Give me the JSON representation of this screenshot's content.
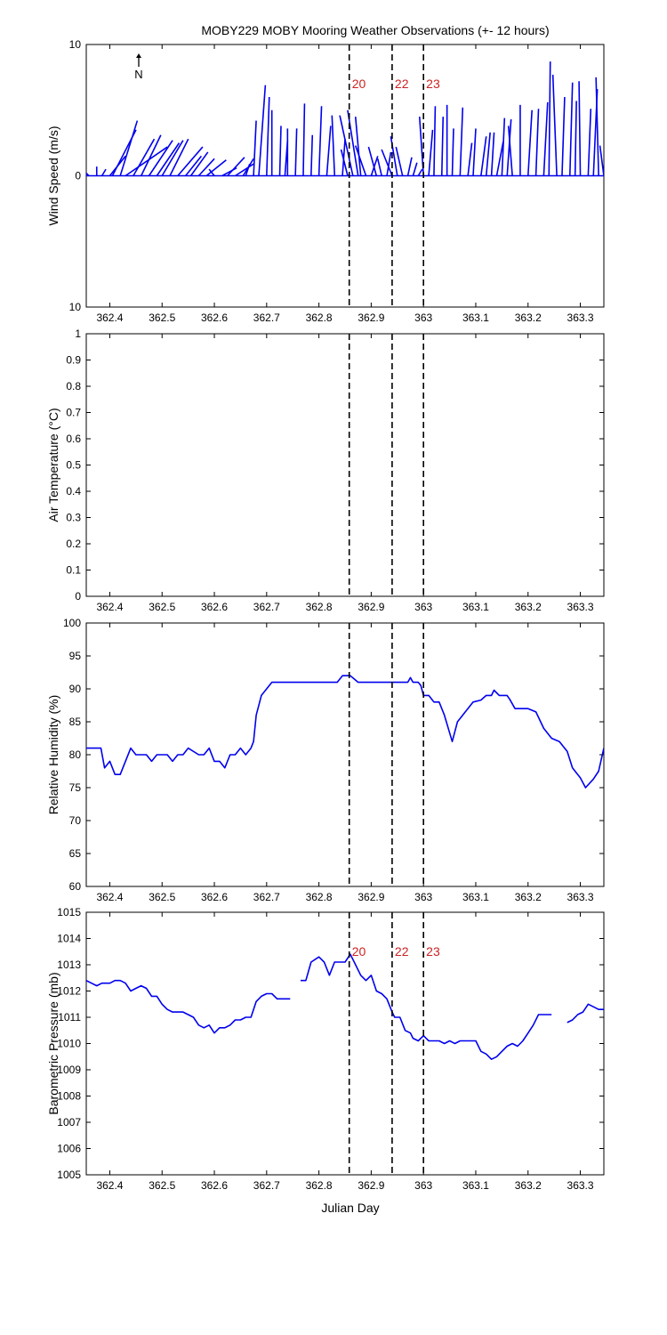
{
  "title": "MOBY229 MOBY Mooring Weather Observations (+- 12 hours)",
  "xlabel": "Julian Day",
  "xlim": [
    362.355,
    363.345
  ],
  "xticks": [
    362.4,
    362.5,
    362.6,
    362.7,
    362.8,
    362.9,
    363,
    363.1,
    363.2,
    363.3
  ],
  "xtick_labels": [
    "362.4",
    "362.5",
    "362.6",
    "362.7",
    "362.8",
    "362.9",
    "363",
    "363.1",
    "363.2",
    "363.3"
  ],
  "colors": {
    "series": "#0000ee",
    "marker_label": "#cc2222",
    "axis": "#000000"
  },
  "north_label": "N",
  "chart_data": [
    {
      "type": "line",
      "panel": "wind",
      "ylabel": "Wind Speed (m/s)",
      "ylim": [
        -10,
        10
      ],
      "yticks": [
        -10,
        0,
        10
      ],
      "ytick_labels": [
        "10",
        "0",
        "10"
      ],
      "grid": false,
      "markers": [
        {
          "x": 362.858,
          "label": "20"
        },
        {
          "x": 362.94,
          "label": "22"
        },
        {
          "x": 363.0,
          "label": "23"
        }
      ],
      "series": [
        {
          "x": [
            362.36,
            362.375,
            362.385,
            362.4,
            362.405,
            362.42,
            362.43,
            362.445,
            362.46,
            362.475,
            362.49,
            362.5,
            362.515,
            362.53,
            362.545,
            362.555,
            362.57,
            362.585,
            362.6,
            362.615,
            362.625,
            362.64,
            362.655,
            362.66,
            362.675,
            362.685,
            362.7,
            362.71,
            362.725,
            362.735,
            362.74,
            362.755,
            362.77,
            362.785,
            362.8,
            362.815,
            362.83,
            362.845,
            362.855,
            362.865,
            362.875,
            362.88,
            362.89,
            362.9,
            362.91,
            362.92,
            362.93,
            362.94,
            362.95,
            362.96,
            362.97,
            362.98,
            362.99,
            363.0,
            363.01,
            363.02,
            363.035,
            363.045,
            363.055,
            363.07,
            363.085,
            363.095,
            363.11,
            363.12,
            363.13,
            363.14,
            363.15,
            363.16,
            363.17,
            363.185,
            363.2,
            363.215,
            363.23,
            363.24,
            363.255,
            363.265,
            363.28,
            363.29,
            363.3,
            363.315,
            363.325,
            363.335,
            363.345
          ],
          "u": [
            -1.0,
            0,
            0.3,
            1.2,
            1.8,
            1.3,
            3.2,
            1.6,
            1.5,
            1.8,
            1.7,
            1.6,
            1.4,
            1.9,
            1.2,
            1.3,
            1.2,
            1.5,
            -0.4,
            1.1,
            1.3,
            1.4,
            0.8,
            0.3,
            0.2,
            0.5,
            0.2,
            0,
            0.1,
            0.2,
            0,
            0.1,
            0.1,
            0.1,
            0.2,
            0.3,
            -0.2,
            0.2,
            -0.5,
            -1.0,
            -0.8,
            -0.4,
            -0.8,
            0.5,
            -0.6,
            -0.3,
            0.3,
            -0.8,
            -0.5,
            -0.5,
            0.3,
            0.3,
            0.3,
            -0.3,
            0.3,
            0.1,
            0.1,
            0,
            0.1,
            0.2,
            0.3,
            0.2,
            0.4,
            0.3,
            0.2,
            0.5,
            0.2,
            0.3,
            -0.3,
            0,
            0.3,
            0.2,
            0.3,
            0.1,
            -0.3,
            0.2,
            0.2,
            0.1,
            -0.1,
            0.2,
            0.3,
            -0.2,
            -0.3
          ],
          "v": [
            1.0,
            0.7,
            0.5,
            1.5,
            3.5,
            4.2,
            2.2,
            2.8,
            3.1,
            2.7,
            2.5,
            2.7,
            2.8,
            2.2,
            1.5,
            1.8,
            1.3,
            1.2,
            0.5,
            0.6,
            1.4,
            0.9,
            1.3,
            0.9,
            4.2,
            6.9,
            6.0,
            5.0,
            3.8,
            2.7,
            3.6,
            3.6,
            5.5,
            3.1,
            5.3,
            3.8,
            4.6,
            2.8,
            2.0,
            4.6,
            5.0,
            4.5,
            2.3,
            1.5,
            2.2,
            1.3,
            1.8,
            2.0,
            3.0,
            2.2,
            1.4,
            1.0,
            0.5,
            4.5,
            3.5,
            5.3,
            4.5,
            5.4,
            3.6,
            5.2,
            2.5,
            3.6,
            3.0,
            3.3,
            3.3,
            2.6,
            4.4,
            4.3,
            3.8,
            5.4,
            5.0,
            5.1,
            5.6,
            8.7,
            7.7,
            6.0,
            7.1,
            5.7,
            7.2,
            5.1,
            6.6,
            7.5,
            2.3
          ]
        }
      ]
    },
    {
      "type": "line",
      "panel": "air_temperature",
      "ylabel": "Air Temperature (°C)",
      "ylim": [
        0,
        1
      ],
      "yticks": [
        0,
        0.1,
        0.2,
        0.3,
        0.4,
        0.5,
        0.6,
        0.7,
        0.8,
        0.9,
        1
      ],
      "ytick_labels": [
        "0",
        "0.1",
        "0.2",
        "0.3",
        "0.4",
        "0.5",
        "0.6",
        "0.7",
        "0.8",
        "0.9",
        "1"
      ],
      "grid": false,
      "markers": [
        {
          "x": 362.858,
          "label": ""
        },
        {
          "x": 362.94,
          "label": ""
        },
        {
          "x": 363.0,
          "label": ""
        }
      ],
      "series": []
    },
    {
      "type": "line",
      "panel": "relative_humidity",
      "ylabel": "Relative Humidity (%)",
      "ylim": [
        60,
        100
      ],
      "yticks": [
        60,
        65,
        70,
        75,
        80,
        85,
        90,
        95,
        100
      ],
      "ytick_labels": [
        "60",
        "65",
        "70",
        "75",
        "80",
        "85",
        "90",
        "95",
        "100"
      ],
      "grid": false,
      "markers": [
        {
          "x": 362.858,
          "label": ""
        },
        {
          "x": 362.94,
          "label": ""
        },
        {
          "x": 363.0,
          "label": ""
        }
      ],
      "series": [
        {
          "x": [
            362.355,
            362.375,
            362.383,
            362.39,
            362.4,
            362.41,
            362.42,
            362.44,
            362.45,
            362.47,
            362.48,
            362.49,
            362.5,
            362.51,
            362.52,
            362.53,
            362.54,
            362.55,
            362.57,
            362.58,
            362.59,
            362.6,
            362.61,
            362.62,
            362.63,
            362.64,
            362.65,
            362.66,
            362.67,
            362.675,
            362.68,
            362.69,
            362.71,
            362.75,
            362.8,
            362.835,
            362.845,
            362.86,
            362.875,
            362.9,
            362.93,
            362.95,
            362.97,
            362.975,
            362.98,
            362.99,
            362.995,
            363.0,
            363.01,
            363.02,
            363.03,
            363.04,
            363.055,
            363.065,
            363.08,
            363.095,
            363.11,
            363.12,
            363.13,
            363.135,
            363.145,
            363.16,
            363.165,
            363.175,
            363.2,
            363.215,
            363.23,
            363.245,
            363.26,
            363.275,
            363.285,
            363.295,
            363.3,
            363.31,
            363.325,
            363.335,
            363.345
          ],
          "y": [
            81,
            81,
            81,
            78,
            79,
            77,
            77,
            81,
            80,
            80,
            79,
            80,
            80,
            80,
            79,
            80,
            80,
            81,
            80,
            80,
            81,
            79,
            79,
            78,
            80,
            80,
            81,
            80,
            81,
            82,
            86,
            89,
            91,
            91,
            91,
            91,
            92,
            92,
            91,
            91,
            91,
            91,
            91,
            91.7,
            91,
            91,
            90.5,
            89,
            89,
            88,
            88,
            86,
            82,
            85,
            86.5,
            88,
            88.3,
            89,
            89,
            89.8,
            89,
            89,
            88.4,
            87,
            87,
            86.5,
            84,
            82.5,
            82,
            80.5,
            78,
            77,
            76.5,
            75,
            76.3,
            77.5,
            81
          ]
        }
      ]
    },
    {
      "type": "line",
      "panel": "barometric_pressure",
      "ylabel": "Barometric Pressure (mb)",
      "ylim": [
        1005,
        1015
      ],
      "yticks": [
        1005,
        1006,
        1007,
        1008,
        1009,
        1010,
        1011,
        1012,
        1013,
        1014,
        1015
      ],
      "ytick_labels": [
        "1005",
        "1006",
        "1007",
        "1008",
        "1009",
        "1010",
        "1011",
        "1012",
        "1013",
        "1014",
        "1015"
      ],
      "grid": false,
      "markers": [
        {
          "x": 362.858,
          "label": "20"
        },
        {
          "x": 362.94,
          "label": "22"
        },
        {
          "x": 363.0,
          "label": "23"
        }
      ],
      "series": [
        {
          "segments": [
            {
              "x": [
                362.355,
                362.365,
                362.375,
                362.385,
                362.4,
                362.41,
                362.42,
                362.43,
                362.44,
                362.45,
                362.46,
                362.47,
                362.48,
                362.49,
                362.5,
                362.51,
                362.52,
                362.53,
                362.54,
                362.55,
                362.56,
                362.57,
                362.58,
                362.59,
                362.6,
                362.61,
                362.62,
                362.63,
                362.64,
                362.65,
                362.66,
                362.67,
                362.68,
                362.69,
                362.7,
                362.71,
                362.72,
                362.73,
                362.745
              ],
              "y": [
                1012.4,
                1012.3,
                1012.2,
                1012.3,
                1012.3,
                1012.4,
                1012.4,
                1012.3,
                1012.0,
                1012.1,
                1012.2,
                1012.1,
                1011.8,
                1011.8,
                1011.5,
                1011.3,
                1011.2,
                1011.2,
                1011.2,
                1011.1,
                1011.0,
                1010.7,
                1010.6,
                1010.7,
                1010.4,
                1010.6,
                1010.6,
                1010.7,
                1010.9,
                1010.9,
                1011.0,
                1011.0,
                1011.6,
                1011.8,
                1011.9,
                1011.9,
                1011.7,
                1011.7,
                1011.7
              ]
            },
            {
              "x": [
                362.765,
                362.775,
                362.785,
                362.8,
                362.81,
                362.82,
                362.83,
                362.84,
                362.85,
                362.86,
                362.87,
                362.88,
                362.89,
                362.9,
                362.91,
                362.92,
                362.93,
                362.94,
                362.945,
                362.955,
                362.965,
                362.975,
                362.98,
                362.99,
                363.0,
                363.01,
                363.02,
                363.03,
                363.04,
                363.05,
                363.06,
                363.07,
                363.08,
                363.09,
                363.1,
                363.11,
                363.12,
                363.13,
                363.14,
                363.15,
                363.16,
                363.17,
                363.18,
                363.19,
                363.2,
                363.21,
                363.22,
                363.23,
                363.24,
                363.245
              ],
              "y": [
                1012.4,
                1012.4,
                1013.1,
                1013.3,
                1013.1,
                1012.6,
                1013.1,
                1013.1,
                1013.1,
                1013.4,
                1013.0,
                1012.6,
                1012.4,
                1012.6,
                1012.0,
                1011.9,
                1011.7,
                1011.2,
                1011.0,
                1011.0,
                1010.5,
                1010.4,
                1010.2,
                1010.1,
                1010.3,
                1010.1,
                1010.1,
                1010.1,
                1010.0,
                1010.1,
                1010.0,
                1010.1,
                1010.1,
                1010.1,
                1010.1,
                1009.7,
                1009.6,
                1009.4,
                1009.5,
                1009.7,
                1009.9,
                1010.0,
                1009.9,
                1010.1,
                1010.4,
                1010.7,
                1011.1,
                1011.1,
                1011.1,
                1011.1
              ]
            },
            {
              "x": [
                363.275,
                363.285,
                363.295,
                363.305,
                363.315,
                363.325,
                363.335,
                363.345
              ],
              "y": [
                1010.8,
                1010.9,
                1011.1,
                1011.2,
                1011.5,
                1011.4,
                1011.3,
                1011.3
              ]
            }
          ]
        }
      ]
    }
  ]
}
